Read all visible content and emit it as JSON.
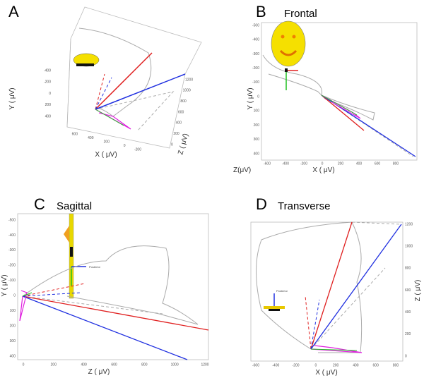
{
  "panels": [
    {
      "letter": "A",
      "axes": {
        "y": {
          "label": "Y ( μV)",
          "ticks": [
            "-400",
            "-200",
            "0",
            "200",
            "400"
          ]
        },
        "x": {
          "label": "X ( μV)",
          "ticks": [
            "600",
            "400",
            "200",
            "0",
            "-200"
          ]
        },
        "z": {
          "label": "Z ( μV)",
          "ticks": [
            "1200",
            "1000",
            "800",
            "600",
            "400",
            "200",
            "0"
          ]
        }
      }
    },
    {
      "letter": "B",
      "title": "Frontal",
      "extra": "Z(μV)",
      "axes": {
        "y": {
          "label": "Y ( μV)",
          "ticks": [
            "-500",
            "-400",
            "-300",
            "-200",
            "-100",
            "0",
            "100",
            "200",
            "300",
            "400"
          ]
        },
        "x": {
          "label": "X ( μV)",
          "ticks": [
            "-600",
            "-400",
            "-200",
            "0",
            "200",
            "400",
            "600",
            "800"
          ]
        }
      }
    },
    {
      "letter": "C",
      "title": "Sagittal",
      "marker": "Posterior",
      "axes": {
        "y": {
          "label": "Y ( μV)",
          "ticks": [
            "-500",
            "-400",
            "-300",
            "-200",
            "-100",
            "0",
            "100",
            "200",
            "300",
            "400"
          ]
        },
        "z": {
          "label": "Z ( μV)",
          "ticks": [
            "0",
            "200",
            "400",
            "600",
            "800",
            "1000",
            "1200"
          ]
        }
      }
    },
    {
      "letter": "D",
      "title": "Transverse",
      "marker": "Posterior",
      "axes": {
        "x": {
          "label": "X ( μV)",
          "ticks": [
            "-600",
            "-400",
            "-200",
            "0",
            "200",
            "400",
            "600",
            "800"
          ]
        },
        "z": {
          "label": "Z ( μV)",
          "ticks": [
            "0",
            "200",
            "400",
            "600",
            "800",
            "1000",
            "1200"
          ]
        }
      }
    }
  ]
}
